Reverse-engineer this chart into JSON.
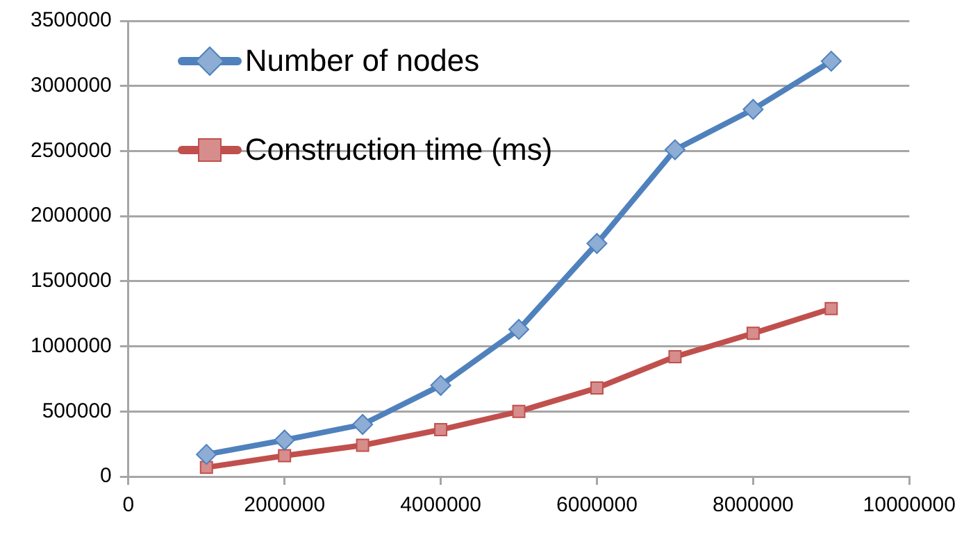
{
  "chart_data": {
    "type": "line",
    "x": [
      1000000,
      2000000,
      3000000,
      4000000,
      5000000,
      6000000,
      7000000,
      8000000,
      9000000
    ],
    "series": [
      {
        "name": "Number of nodes",
        "color": "#4f81bd",
        "marker": "diamond",
        "values": [
          170000,
          280000,
          400000,
          700000,
          1130000,
          1790000,
          2510000,
          2820000,
          3190000
        ]
      },
      {
        "name": "Construction time (ms)",
        "color": "#c0504d",
        "marker": "square",
        "values": [
          70000,
          160000,
          240000,
          360000,
          500000,
          680000,
          920000,
          1100000,
          1290000
        ]
      }
    ],
    "xlim": [
      0,
      10000000
    ],
    "xticks": [
      0,
      2000000,
      4000000,
      6000000,
      8000000,
      10000000
    ],
    "ylim": [
      0,
      3500000
    ],
    "yticks": [
      0,
      500000,
      1000000,
      1500000,
      2000000,
      2500000,
      3000000,
      3500000
    ],
    "grid": "y",
    "legend": "top left",
    "line_style": "solid"
  }
}
